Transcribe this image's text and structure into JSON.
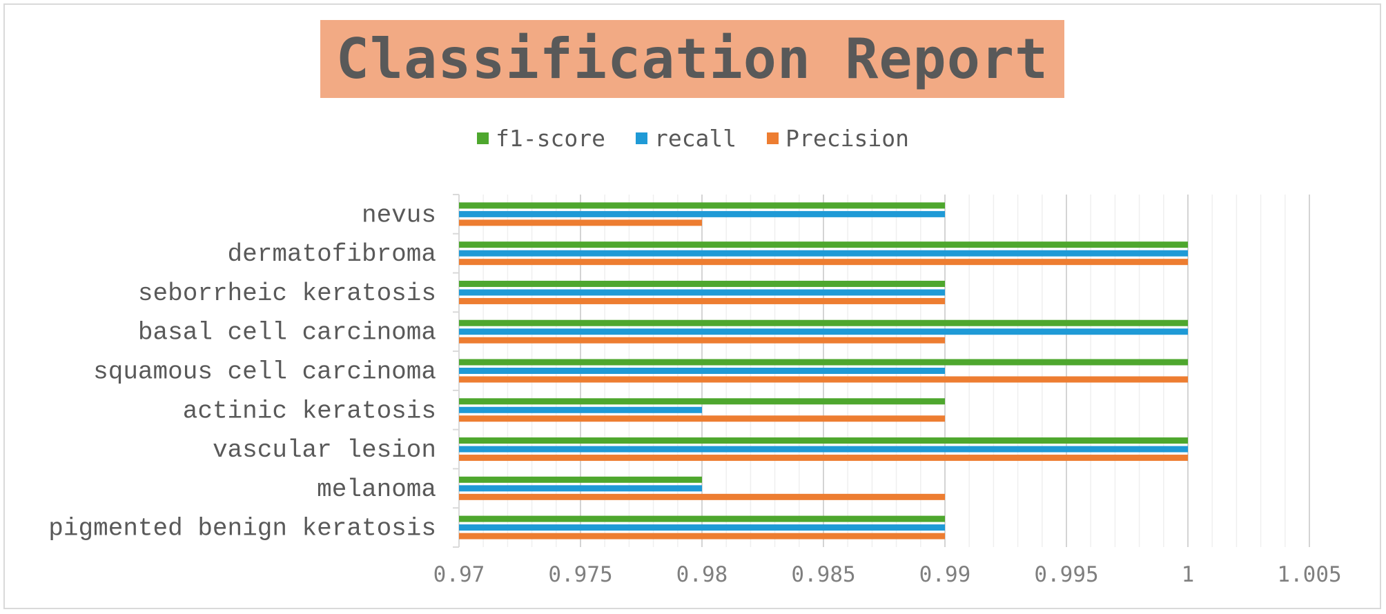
{
  "chart_data": {
    "type": "bar",
    "orientation": "horizontal",
    "title": "Classification Report",
    "categories": [
      "pigmented benign keratosis",
      "melanoma",
      "vascular lesion",
      "actinic keratosis",
      "squamous cell carcinoma",
      "basal cell carcinoma",
      "seborrheic keratosis",
      "dermatofibroma",
      "nevus"
    ],
    "series": [
      {
        "name": "Precision",
        "color": "#ed7d31",
        "values": [
          0.99,
          0.99,
          1.0,
          0.99,
          1.0,
          0.99,
          0.99,
          1.0,
          0.98
        ]
      },
      {
        "name": "recall",
        "color": "#1f9ad6",
        "values": [
          0.99,
          0.98,
          1.0,
          0.98,
          0.99,
          1.0,
          0.99,
          1.0,
          0.99
        ]
      },
      {
        "name": "f1-score",
        "color": "#4ea72e",
        "values": [
          0.99,
          0.98,
          1.0,
          0.99,
          1.0,
          1.0,
          0.99,
          1.0,
          0.99
        ]
      }
    ],
    "xlim": [
      0.97,
      1.005
    ],
    "xticks": [
      "0.97",
      "0.975",
      "0.98",
      "0.985",
      "0.99",
      "0.995",
      "1",
      "1.005"
    ],
    "xlabel": "",
    "ylabel": "",
    "legend": [
      "f1-score",
      "recall",
      "Precision"
    ],
    "legend_position": "top",
    "grid": true
  }
}
